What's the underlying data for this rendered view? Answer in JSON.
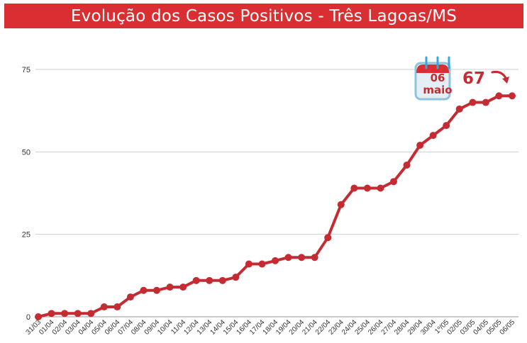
{
  "title": "Evolução dos Casos Positivos - Três Lagoas/MS",
  "chart_data": {
    "type": "line",
    "title": "Evolução dos Casos Positivos - Três Lagoas/MS",
    "categories": [
      "31/03",
      "01/04",
      "02/04",
      "03/04",
      "04/04",
      "05/04",
      "06/04",
      "07/04",
      "08/04",
      "09/04",
      "10/04",
      "11/04",
      "12/04",
      "13/04",
      "14/04",
      "15/04",
      "16/04",
      "17/04",
      "18/04",
      "19/04",
      "20/04",
      "21/04",
      "22/04",
      "23/04",
      "24/04",
      "25/04",
      "26/04",
      "27/04",
      "28/04",
      "29/04",
      "30/04",
      "1º/05",
      "02/05",
      "03/05",
      "04/05",
      "05/05",
      "06/05"
    ],
    "series": [
      {
        "values": [
          0,
          1,
          1,
          1,
          1,
          3,
          3,
          6,
          8,
          8,
          9,
          9,
          11,
          11,
          11,
          12,
          16,
          16,
          17,
          18,
          18,
          18,
          24,
          34,
          39,
          39,
          39,
          41,
          46,
          52,
          55,
          58,
          63,
          65,
          65,
          67,
          67
        ]
      }
    ],
    "ylim": [
      0,
      75
    ],
    "yticks": [
      0,
      25,
      50,
      75
    ],
    "grid": true,
    "line_color": "#c52b33",
    "annotation": {
      "day": "06",
      "month": "maio",
      "value": "67"
    }
  }
}
